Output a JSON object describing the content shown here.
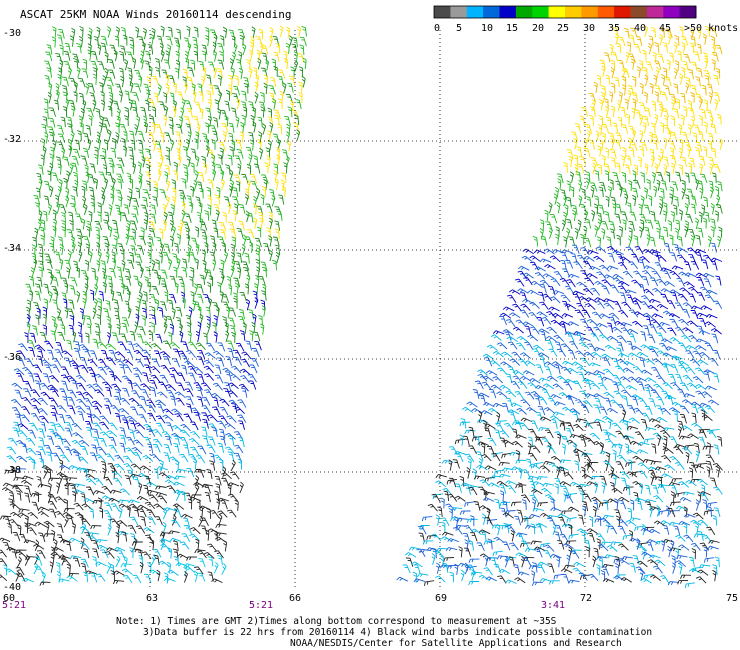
{
  "title": "ASCAT 25KM NOAA Winds 20160114 descending",
  "legend": {
    "colors": [
      "#4a4a4a",
      "#9a9a9a",
      "#00b4ff",
      "#0068d8",
      "#0000c8",
      "#00a800",
      "#00d400",
      "#ffff00",
      "#ffcc00",
      "#ff9900",
      "#ff5a00",
      "#e01800",
      "#8b4a2a",
      "#c0289a",
      "#9000c0",
      "#500080"
    ],
    "labels": [
      "0",
      "5",
      "10",
      "15",
      "20",
      "25",
      "30",
      "35",
      "40",
      "45",
      ">50 knots"
    ]
  },
  "axes": {
    "lat_labels": [
      "-30",
      "-32",
      "-34",
      "-36",
      "-38",
      "-40"
    ],
    "lon_labels": [
      "60",
      "63",
      "66",
      "69",
      "72",
      "75"
    ]
  },
  "times": [
    "5:21",
    "5:21",
    "3:41"
  ],
  "notes": [
    "Note: 1) Times are GMT 2)Times along bottom correspond to measurement at ~35S",
    "3)Data buffer is 22 hrs from 20160114 4) Black wind barbs indicate possible contamination",
    "NOAA/NESDIS/Center for Satellite Applications and Research"
  ]
}
